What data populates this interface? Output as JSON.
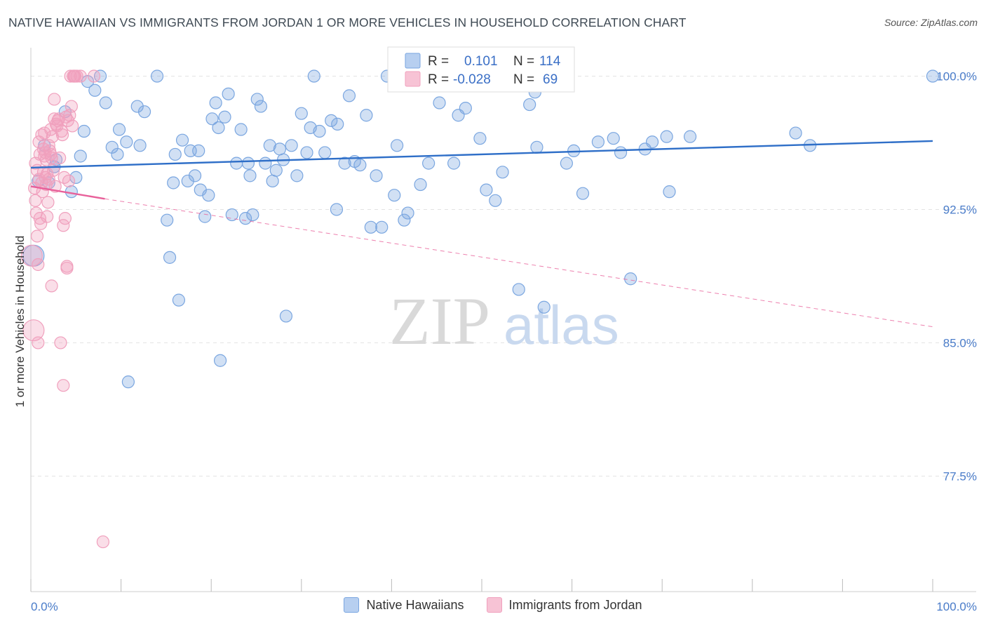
{
  "title": "NATIVE HAWAIIAN VS IMMIGRANTS FROM JORDAN 1 OR MORE VEHICLES IN HOUSEHOLD CORRELATION CHART",
  "source": "Source: ZipAtlas.com",
  "watermark": {
    "zip": "ZIP",
    "atlas": "atlas"
  },
  "legend": {
    "r_label": "R =",
    "n_label": "N =",
    "series": [
      {
        "r": "0.101",
        "n": "114"
      },
      {
        "r": "-0.028",
        "n": "69"
      }
    ]
  },
  "chart_data": {
    "type": "scatter",
    "title": "NATIVE HAWAIIAN VS IMMIGRANTS FROM JORDAN 1 OR MORE VEHICLES IN HOUSEHOLD CORRELATION CHART",
    "xlabel": "",
    "ylabel": "1 or more Vehicles in Household",
    "xlim": [
      0,
      100
    ],
    "ylim": [
      71.0,
      101.6
    ],
    "x_tick_labels": [
      {
        "value": 0,
        "label": "0.0%"
      },
      {
        "value": 100,
        "label": "100.0%"
      }
    ],
    "y_tick_labels": [
      {
        "value": 100.0,
        "label": "100.0%"
      },
      {
        "value": 92.5,
        "label": "92.5%"
      },
      {
        "value": 85.0,
        "label": "85.0%"
      },
      {
        "value": 77.5,
        "label": "77.5%"
      }
    ],
    "series": [
      {
        "name": "Native Hawaiians",
        "color": "#7aa6e0",
        "line_color": "#2f6fc8",
        "trend": {
          "x": [
            0,
            100
          ],
          "y": [
            94.85,
            96.35
          ]
        },
        "points": [
          [
            0.3,
            89.9
          ],
          [
            0.8,
            94.1
          ],
          [
            1.5,
            96.1
          ],
          [
            2.0,
            94.0
          ],
          [
            2.6,
            94.9
          ],
          [
            2.8,
            95.3
          ],
          [
            3.8,
            98.0
          ],
          [
            4.5,
            93.5
          ],
          [
            5.0,
            94.3
          ],
          [
            5.5,
            95.5
          ],
          [
            5.9,
            96.9
          ],
          [
            6.3,
            99.7
          ],
          [
            7.1,
            99.2
          ],
          [
            7.7,
            100.0
          ],
          [
            8.3,
            98.5
          ],
          [
            9.0,
            96.0
          ],
          [
            9.6,
            95.6
          ],
          [
            9.8,
            97.0
          ],
          [
            10.6,
            96.3
          ],
          [
            10.8,
            82.8
          ],
          [
            11.8,
            98.3
          ],
          [
            12.1,
            96.1
          ],
          [
            12.6,
            98.0
          ],
          [
            14.0,
            100.0
          ],
          [
            15.1,
            91.9
          ],
          [
            15.4,
            89.8
          ],
          [
            15.8,
            94.0
          ],
          [
            16.0,
            95.6
          ],
          [
            16.4,
            87.4
          ],
          [
            16.8,
            96.4
          ],
          [
            17.4,
            94.1
          ],
          [
            17.7,
            95.8
          ],
          [
            18.2,
            94.4
          ],
          [
            18.6,
            95.8
          ],
          [
            18.8,
            93.6
          ],
          [
            19.3,
            92.1
          ],
          [
            19.7,
            93.3
          ],
          [
            20.1,
            97.6
          ],
          [
            20.5,
            98.5
          ],
          [
            20.8,
            97.1
          ],
          [
            21.0,
            84.0
          ],
          [
            21.5,
            97.7
          ],
          [
            21.9,
            99.0
          ],
          [
            22.3,
            92.2
          ],
          [
            22.8,
            95.1
          ],
          [
            23.3,
            97.0
          ],
          [
            23.8,
            92.0
          ],
          [
            24.1,
            95.1
          ],
          [
            24.3,
            94.4
          ],
          [
            24.6,
            92.2
          ],
          [
            25.1,
            98.7
          ],
          [
            25.5,
            98.3
          ],
          [
            26.0,
            95.1
          ],
          [
            26.5,
            96.1
          ],
          [
            26.8,
            94.1
          ],
          [
            27.2,
            94.7
          ],
          [
            27.6,
            95.9
          ],
          [
            28.0,
            95.3
          ],
          [
            28.3,
            86.5
          ],
          [
            28.9,
            96.1
          ],
          [
            29.5,
            94.4
          ],
          [
            30.0,
            97.9
          ],
          [
            30.6,
            95.7
          ],
          [
            31.0,
            97.1
          ],
          [
            31.4,
            100.0
          ],
          [
            32.0,
            96.9
          ],
          [
            32.6,
            95.7
          ],
          [
            33.3,
            97.5
          ],
          [
            33.9,
            92.5
          ],
          [
            34.0,
            97.3
          ],
          [
            34.8,
            95.1
          ],
          [
            35.3,
            98.9
          ],
          [
            35.9,
            95.2
          ],
          [
            36.5,
            95.0
          ],
          [
            37.2,
            97.8
          ],
          [
            37.7,
            91.5
          ],
          [
            38.3,
            94.4
          ],
          [
            38.9,
            91.5
          ],
          [
            39.5,
            100.0
          ],
          [
            40.3,
            93.3
          ],
          [
            40.6,
            96.1
          ],
          [
            41.4,
            91.9
          ],
          [
            41.8,
            92.3
          ],
          [
            43.2,
            93.9
          ],
          [
            44.1,
            95.1
          ],
          [
            45.3,
            98.5
          ],
          [
            46.9,
            95.1
          ],
          [
            47.4,
            97.8
          ],
          [
            48.2,
            98.2
          ],
          [
            49.8,
            96.5
          ],
          [
            50.5,
            93.6
          ],
          [
            51.5,
            93.0
          ],
          [
            52.3,
            94.6
          ],
          [
            54.1,
            88.0
          ],
          [
            55.3,
            98.4
          ],
          [
            55.9,
            99.1
          ],
          [
            56.1,
            96.0
          ],
          [
            56.9,
            87.0
          ],
          [
            57.9,
            100.0
          ],
          [
            59.4,
            95.1
          ],
          [
            60.2,
            95.8
          ],
          [
            61.2,
            93.4
          ],
          [
            62.9,
            96.3
          ],
          [
            64.6,
            96.5
          ],
          [
            65.4,
            95.7
          ],
          [
            66.5,
            88.6
          ],
          [
            68.1,
            95.9
          ],
          [
            68.9,
            96.3
          ],
          [
            70.5,
            96.6
          ],
          [
            70.8,
            93.5
          ],
          [
            73.1,
            96.6
          ],
          [
            84.8,
            96.8
          ],
          [
            86.4,
            96.1
          ],
          [
            100.0,
            100.0
          ]
        ]
      },
      {
        "name": "Immigrants from Jordan",
        "color": "#f0a0bd",
        "line_color": "#e8609a",
        "trend": {
          "x": [
            0,
            8.2
          ],
          "y": [
            93.8,
            93.1
          ]
        },
        "trend_dashed": {
          "x": [
            8.2,
            100
          ],
          "y": [
            93.1,
            85.9
          ]
        },
        "points": [
          [
            0.1,
            89.9
          ],
          [
            0.3,
            85.7
          ],
          [
            0.4,
            93.7
          ],
          [
            0.5,
            95.1
          ],
          [
            0.5,
            93.0
          ],
          [
            0.6,
            92.3
          ],
          [
            0.7,
            91.0
          ],
          [
            0.7,
            94.7
          ],
          [
            0.8,
            85.0
          ],
          [
            0.8,
            89.4
          ],
          [
            0.9,
            96.3
          ],
          [
            0.9,
            94.2
          ],
          [
            1.0,
            95.6
          ],
          [
            1.0,
            92.0
          ],
          [
            1.1,
            91.7
          ],
          [
            1.2,
            96.7
          ],
          [
            1.2,
            94.0
          ],
          [
            1.3,
            93.5
          ],
          [
            1.4,
            95.9
          ],
          [
            1.4,
            94.6
          ],
          [
            1.5,
            95.5
          ],
          [
            1.5,
            96.8
          ],
          [
            1.6,
            94.3
          ],
          [
            1.6,
            95.7
          ],
          [
            1.7,
            93.9
          ],
          [
            1.7,
            95.3
          ],
          [
            1.8,
            92.1
          ],
          [
            1.8,
            94.5
          ],
          [
            1.9,
            92.9
          ],
          [
            2.0,
            96.1
          ],
          [
            2.0,
            94.2
          ],
          [
            2.1,
            95.8
          ],
          [
            2.2,
            95.6
          ],
          [
            2.2,
            97.0
          ],
          [
            2.3,
            95.4
          ],
          [
            2.3,
            88.2
          ],
          [
            2.4,
            96.6
          ],
          [
            2.5,
            94.7
          ],
          [
            2.6,
            98.7
          ],
          [
            2.6,
            97.6
          ],
          [
            2.7,
            93.8
          ],
          [
            2.8,
            97.3
          ],
          [
            2.9,
            97.2
          ],
          [
            3.0,
            97.5
          ],
          [
            3.1,
            97.6
          ],
          [
            3.2,
            95.4
          ],
          [
            3.3,
            85.0
          ],
          [
            3.4,
            96.9
          ],
          [
            3.5,
            96.7
          ],
          [
            3.6,
            91.6
          ],
          [
            3.6,
            82.6
          ],
          [
            3.7,
            94.3
          ],
          [
            3.8,
            92.0
          ],
          [
            3.9,
            97.7
          ],
          [
            4.0,
            89.3
          ],
          [
            4.0,
            89.2
          ],
          [
            4.1,
            97.5
          ],
          [
            4.2,
            94.1
          ],
          [
            4.3,
            97.8
          ],
          [
            4.4,
            100.0
          ],
          [
            4.5,
            98.3
          ],
          [
            4.6,
            97.2
          ],
          [
            4.7,
            100.0
          ],
          [
            4.8,
            100.0
          ],
          [
            4.9,
            100.0
          ],
          [
            5.1,
            100.0
          ],
          [
            5.5,
            100.0
          ],
          [
            7.0,
            100.0
          ],
          [
            8.0,
            73.8
          ]
        ]
      }
    ]
  }
}
